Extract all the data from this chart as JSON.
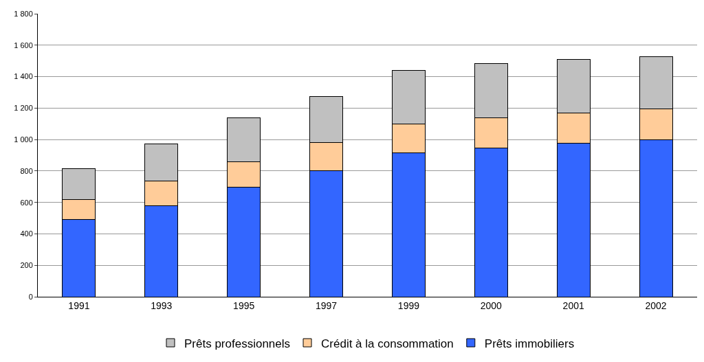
{
  "chart_data": {
    "type": "bar",
    "stacked": true,
    "categories": [
      "1991",
      "1993",
      "1995",
      "1997",
      "1999",
      "2000",
      "2001",
      "2002"
    ],
    "series": [
      {
        "name": "Prêts immobiliers",
        "color": "#3366ff",
        "values": [
          490,
          580,
          695,
          800,
          915,
          945,
          975,
          1000
        ]
      },
      {
        "name": "Crédit à la consommation",
        "color": "#ffcc99",
        "values": [
          130,
          155,
          165,
          180,
          185,
          195,
          195,
          195
        ]
      },
      {
        "name": "Prêts professionnels",
        "color": "#c0c0c0",
        "values": [
          195,
          235,
          280,
          295,
          340,
          345,
          340,
          330
        ]
      }
    ],
    "ylim": [
      0,
      1800
    ],
    "yticks": [
      0,
      200,
      400,
      600,
      800,
      {
        "value": 1000,
        "label": "1 000"
      },
      {
        "value": 1200,
        "label": "1 200"
      },
      {
        "value": 1400,
        "label": "1 400"
      },
      {
        "value": 1600,
        "label": "1 600"
      },
      {
        "value": 1800,
        "label": "1 800"
      }
    ],
    "grid": "y",
    "legend": "bottom"
  }
}
